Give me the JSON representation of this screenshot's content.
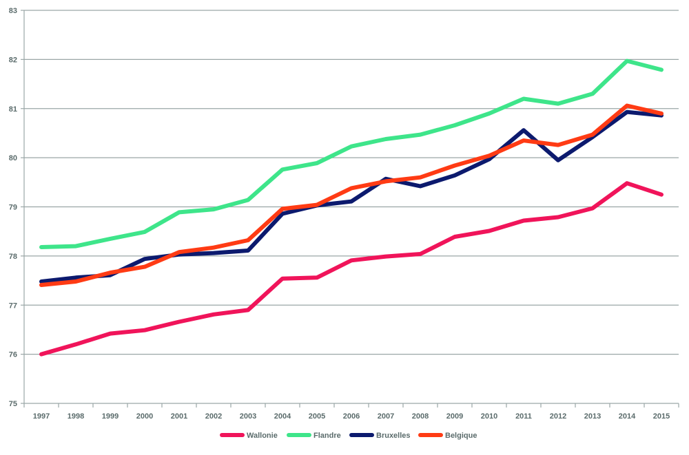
{
  "chart_data": {
    "type": "line",
    "title": "",
    "xlabel": "",
    "ylabel": "",
    "categories": [
      "1997",
      "1998",
      "1999",
      "2000",
      "2001",
      "2002",
      "2003",
      "2004",
      "2005",
      "2006",
      "2007",
      "2008",
      "2009",
      "2010",
      "2011",
      "2012",
      "2013",
      "2014",
      "2015"
    ],
    "ylim": [
      75,
      83
    ],
    "yticks": [
      "75",
      "76",
      "77",
      "78",
      "79",
      "80",
      "81",
      "82",
      "83"
    ],
    "grid": "horizontal",
    "legend_position": "bottom",
    "series": [
      {
        "name": "Wallonie",
        "color": "#f0145a",
        "values": [
          76.0,
          76.2,
          76.42,
          76.49,
          76.66,
          76.81,
          76.9,
          77.54,
          77.56,
          77.91,
          77.99,
          78.04,
          78.39,
          78.51,
          78.72,
          78.79,
          78.97,
          79.48,
          79.25
        ]
      },
      {
        "name": "Flandre",
        "color": "#3ee58a",
        "values": [
          78.18,
          78.2,
          78.35,
          78.49,
          78.89,
          78.95,
          79.14,
          79.76,
          79.89,
          80.23,
          80.38,
          80.47,
          80.66,
          80.9,
          81.2,
          81.1,
          81.3,
          81.97,
          81.79
        ]
      },
      {
        "name": "Bruxelles",
        "color": "#0c1a6e",
        "values": [
          77.48,
          77.56,
          77.61,
          77.94,
          78.03,
          78.06,
          78.11,
          78.86,
          79.03,
          79.11,
          79.57,
          79.42,
          79.64,
          79.97,
          80.56,
          79.95,
          80.42,
          80.93,
          80.86
        ]
      },
      {
        "name": "Belgique",
        "color": "#ff3b14",
        "values": [
          77.41,
          77.48,
          77.66,
          77.78,
          78.08,
          78.17,
          78.32,
          78.96,
          79.04,
          79.38,
          79.52,
          79.6,
          79.84,
          80.04,
          80.35,
          80.26,
          80.47,
          81.06,
          80.9
        ]
      }
    ]
  }
}
